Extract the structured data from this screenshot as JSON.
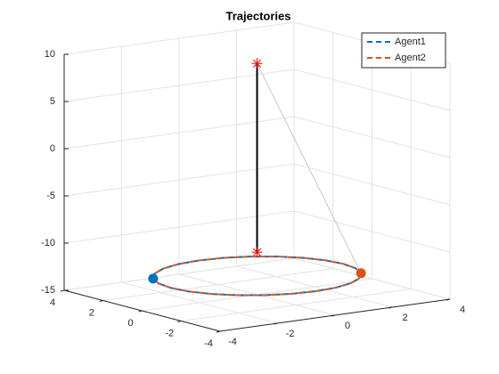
{
  "chart_data": {
    "type": "line3d",
    "title": "Trajectories",
    "xlim": [
      -4,
      4
    ],
    "xticks": [
      -4,
      -2,
      0,
      2,
      4
    ],
    "ylim": [
      -4,
      4
    ],
    "yticks": [
      -4,
      -2,
      0,
      2,
      4
    ],
    "zlim": [
      -15,
      10
    ],
    "zticks": [
      -15,
      -10,
      -5,
      0,
      5,
      10
    ],
    "grid": true,
    "legend": "top-right",
    "series": [
      {
        "name": "Agent1",
        "color": "#0072bd",
        "x": [
          -2.6,
          -2.9,
          -3,
          -2.9,
          -2.6,
          -2.12,
          -1.5,
          -0.78,
          0,
          0.78,
          1.5,
          2.12,
          2.6,
          2.9,
          3,
          2.9,
          2.6,
          2.12,
          1.5,
          0.78,
          0,
          -0.78,
          -1.5,
          -2.12,
          -2.6
        ],
        "y": [
          1.5,
          0.78,
          0,
          -0.78,
          -1.5,
          -2.12,
          -2.6,
          -2.9,
          -3,
          -2.9,
          -2.6,
          -2.12,
          -1.5,
          -0.78,
          0,
          0.78,
          1.5,
          2.12,
          2.6,
          2.9,
          3,
          2.9,
          2.6,
          2.12,
          1.5
        ],
        "z": [
          -13,
          -13,
          -13,
          -13,
          -13,
          -13,
          -13,
          -13,
          -13,
          -13,
          -13,
          -13,
          -13,
          -13,
          -13,
          -13,
          -13,
          -13,
          -13,
          -13,
          -13,
          -13,
          -13,
          -13,
          -13
        ]
      },
      {
        "name": "Agent2",
        "color": "#d95319",
        "x": [
          2.6,
          2.9,
          3,
          2.9,
          2.6,
          2.12,
          1.5,
          0.78,
          0,
          -0.78,
          -1.5,
          -2.12,
          -2.6,
          -2.9,
          -3,
          -2.9,
          -2.6,
          -2.12,
          -1.5,
          -0.78,
          0,
          0.78,
          1.5,
          2.12,
          2.6
        ],
        "y": [
          -1.5,
          -0.78,
          0,
          0.78,
          1.5,
          2.12,
          2.6,
          2.9,
          3,
          2.9,
          2.6,
          2.12,
          1.5,
          0.78,
          0,
          -0.78,
          -1.5,
          -2.12,
          -2.6,
          -2.9,
          -3,
          -2.9,
          -2.6,
          -2.12,
          -1.5
        ],
        "z": [
          -13,
          -13,
          -13,
          -13,
          -13,
          -13,
          -13,
          -13,
          -13,
          -13,
          -13,
          -13,
          -13,
          -13,
          -13,
          -13,
          -13,
          -13,
          -13,
          -13,
          -13,
          -13,
          -13,
          -13,
          -13
        ]
      }
    ],
    "targets": {
      "color": "#ff0000",
      "x": [
        0,
        0
      ],
      "y": [
        0,
        0
      ],
      "z": [
        9.5,
        -10.5
      ]
    }
  }
}
